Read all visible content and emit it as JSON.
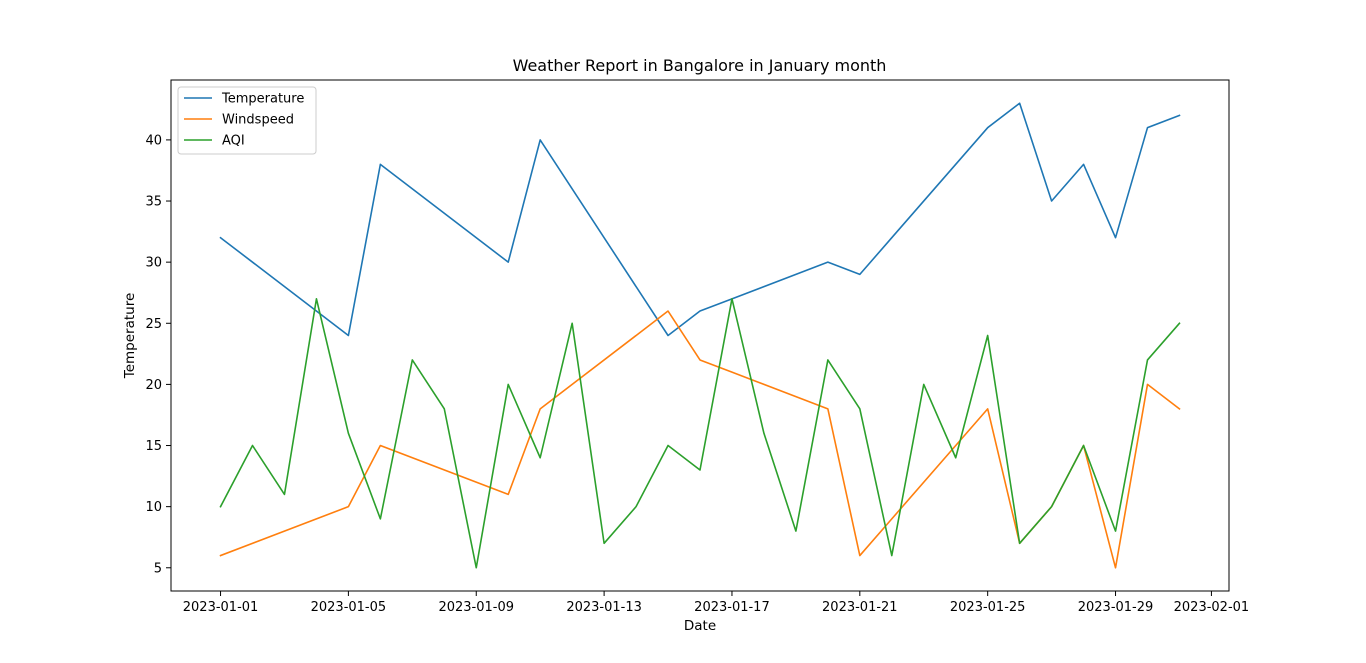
{
  "chart_data": {
    "type": "line",
    "title": "Weather Report in Bangalore in January month",
    "xlabel": "Date",
    "ylabel": "Temperature",
    "x_range": [
      "2023-01-01",
      "2023-02-01"
    ],
    "ylim": [
      3.1,
      44.9
    ],
    "grid": false,
    "legend_position": "top-left",
    "x_ticks": [
      "2023-01-01",
      "2023-01-05",
      "2023-01-09",
      "2023-01-13",
      "2023-01-17",
      "2023-01-21",
      "2023-01-25",
      "2023-01-29",
      "2023-02-01"
    ],
    "y_ticks": [
      5,
      10,
      15,
      20,
      25,
      30,
      35,
      40
    ],
    "series": [
      {
        "name": "Temperature",
        "color": "#1f77b4",
        "points": [
          [
            "2023-01-01",
            32
          ],
          [
            "2023-01-05",
            24
          ],
          [
            "2023-01-06",
            38
          ],
          [
            "2023-01-10",
            30
          ],
          [
            "2023-01-11",
            40
          ],
          [
            "2023-01-15",
            24
          ],
          [
            "2023-01-16",
            26
          ],
          [
            "2023-01-17",
            27
          ],
          [
            "2023-01-20",
            30
          ],
          [
            "2023-01-21",
            29
          ],
          [
            "2023-01-25",
            41
          ],
          [
            "2023-01-26",
            43
          ],
          [
            "2023-01-27",
            35
          ],
          [
            "2023-01-28",
            38
          ],
          [
            "2023-01-29",
            32
          ],
          [
            "2023-01-30",
            41
          ],
          [
            "2023-01-31",
            42
          ]
        ]
      },
      {
        "name": "Windspeed",
        "color": "#ff7f0e",
        "points": [
          [
            "2023-01-01",
            6
          ],
          [
            "2023-01-05",
            10
          ],
          [
            "2023-01-06",
            15
          ],
          [
            "2023-01-10",
            11
          ],
          [
            "2023-01-11",
            18
          ],
          [
            "2023-01-15",
            26
          ],
          [
            "2023-01-16",
            22
          ],
          [
            "2023-01-17",
            21
          ],
          [
            "2023-01-20",
            18
          ],
          [
            "2023-01-21",
            6
          ],
          [
            "2023-01-25",
            18
          ],
          [
            "2023-01-26",
            7
          ],
          [
            "2023-01-27",
            10
          ],
          [
            "2023-01-28",
            15
          ],
          [
            "2023-01-29",
            5
          ],
          [
            "2023-01-30",
            20
          ],
          [
            "2023-01-31",
            18
          ]
        ]
      },
      {
        "name": "AQI",
        "color": "#2ca02c",
        "points": [
          [
            "2023-01-01",
            10
          ],
          [
            "2023-01-02",
            15
          ],
          [
            "2023-01-03",
            11
          ],
          [
            "2023-01-04",
            27
          ],
          [
            "2023-01-05",
            16
          ],
          [
            "2023-01-06",
            9
          ],
          [
            "2023-01-07",
            22
          ],
          [
            "2023-01-08",
            18
          ],
          [
            "2023-01-09",
            5
          ],
          [
            "2023-01-10",
            20
          ],
          [
            "2023-01-11",
            14
          ],
          [
            "2023-01-12",
            25
          ],
          [
            "2023-01-13",
            7
          ],
          [
            "2023-01-14",
            10
          ],
          [
            "2023-01-15",
            15
          ],
          [
            "2023-01-16",
            13
          ],
          [
            "2023-01-17",
            27
          ],
          [
            "2023-01-18",
            16
          ],
          [
            "2023-01-19",
            8
          ],
          [
            "2023-01-20",
            22
          ],
          [
            "2023-01-21",
            18
          ],
          [
            "2023-01-22",
            6
          ],
          [
            "2023-01-23",
            20
          ],
          [
            "2023-01-24",
            14
          ],
          [
            "2023-01-25",
            24
          ],
          [
            "2023-01-26",
            7
          ],
          [
            "2023-01-27",
            10
          ],
          [
            "2023-01-28",
            15
          ],
          [
            "2023-01-29",
            8
          ],
          [
            "2023-01-30",
            22
          ],
          [
            "2023-01-31",
            25
          ]
        ]
      }
    ]
  }
}
